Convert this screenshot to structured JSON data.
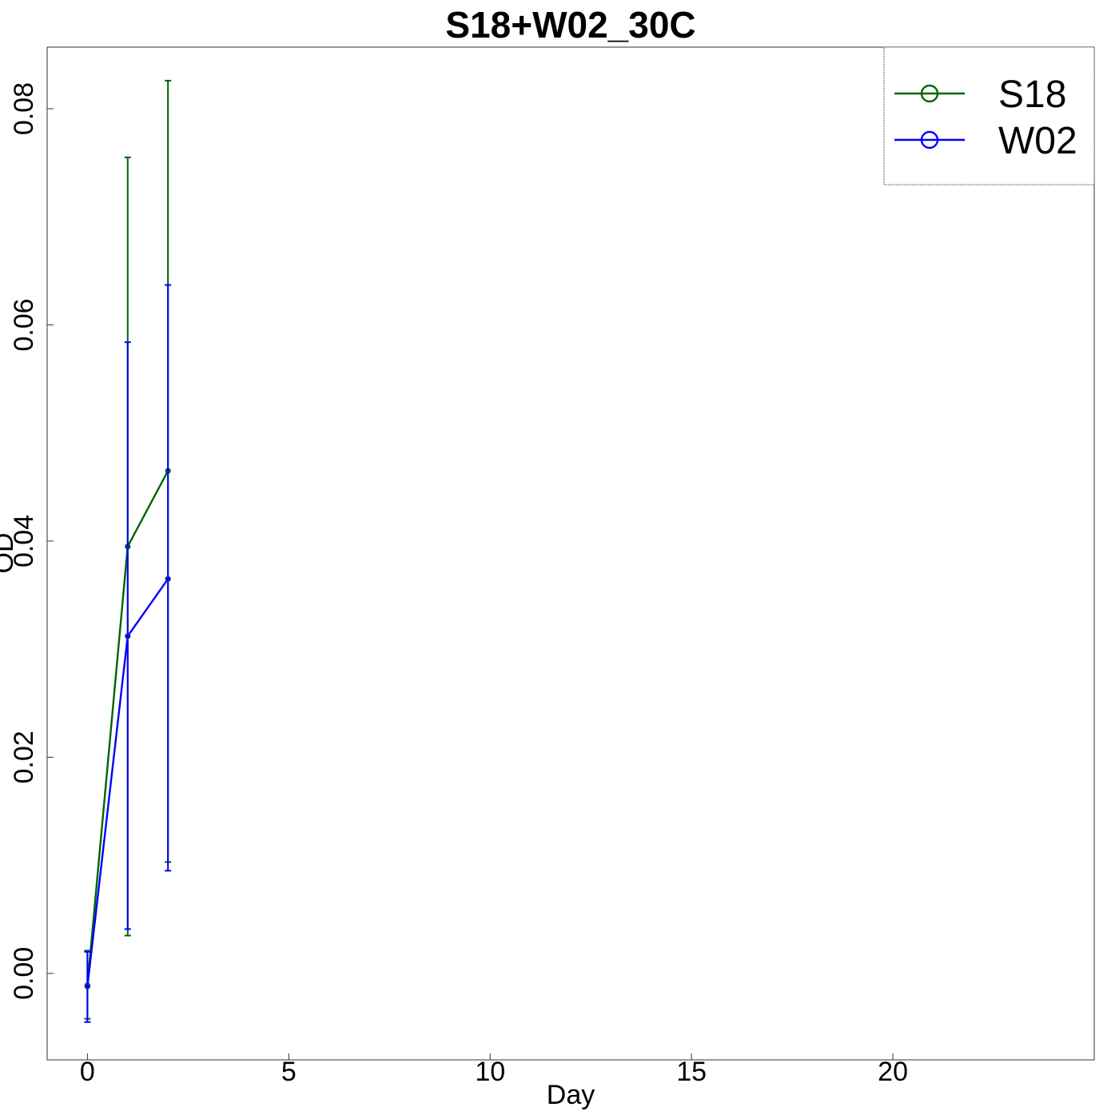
{
  "chart_data": {
    "type": "line",
    "title": "S18+W02_30C",
    "xlabel": "Day",
    "ylabel": "OD",
    "xlim": [
      -1,
      25
    ],
    "ylim": [
      -0.008,
      0.0857
    ],
    "x_ticks": [
      0,
      5,
      10,
      15,
      20
    ],
    "y_ticks": [
      0.0,
      0.02,
      0.04,
      0.06,
      0.08
    ],
    "y_tick_labels": [
      "0.00",
      "0.02",
      "0.04",
      "0.06",
      "0.08"
    ],
    "grid": false,
    "legend_position": "top-right",
    "error_bars": true,
    "series": [
      {
        "name": "S18",
        "color": "#006400",
        "x": [
          0,
          1,
          2
        ],
        "y": [
          -0.0011,
          0.0395,
          0.0465
        ],
        "y_low": [
          -0.0042,
          0.0035,
          0.0103
        ],
        "y_high": [
          0.0021,
          0.0755,
          0.0826
        ]
      },
      {
        "name": "W02",
        "color": "#0000ff",
        "x": [
          0,
          1,
          2
        ],
        "y": [
          -0.0012,
          0.0312,
          0.0365
        ],
        "y_low": [
          -0.0045,
          0.0041,
          0.0095
        ],
        "y_high": [
          0.002,
          0.0584,
          0.0637
        ]
      }
    ]
  }
}
